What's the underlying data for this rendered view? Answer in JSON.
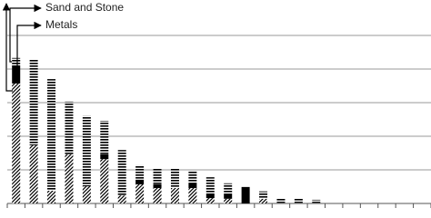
{
  "chart_data": {
    "type": "bar",
    "categories": [
      null,
      null,
      null,
      null,
      null,
      null,
      null,
      null,
      null,
      null,
      null,
      null,
      null,
      null,
      null,
      null,
      null,
      null,
      null,
      null,
      null,
      null,
      null,
      null
    ],
    "series": [
      {
        "color": "#000000",
        "pattern": "diagonal",
        "values": [
          3.57,
          1.73,
          0.38,
          1.46,
          0.51,
          1.32,
          0.24,
          0.57,
          0.46,
          0.46,
          0.46,
          0.16,
          0.14,
          0,
          0.14,
          0,
          0,
          0,
          0,
          0,
          0,
          0,
          0,
          0
        ]
      },
      {
        "name": "Metals",
        "color": "#000000",
        "pattern": "solid",
        "values": [
          0.54,
          0,
          0,
          0,
          0,
          0.14,
          0,
          0.14,
          0.11,
          0,
          0.14,
          0.11,
          0.14,
          0.49,
          0,
          0,
          0,
          0,
          0,
          0,
          0,
          0,
          0,
          0
        ]
      },
      {
        "name": "Sand and Stone",
        "color": "#000000",
        "pattern": "horizontal",
        "values": [
          0.22,
          2.54,
          3.32,
          1.57,
          2.1,
          1.0,
          1.35,
          0.43,
          0.46,
          0.57,
          0.38,
          0.51,
          0.32,
          0,
          0.22,
          0.14,
          0.14,
          0.11,
          0,
          0,
          0,
          0,
          0,
          0
        ]
      }
    ],
    "ylim": [
      0,
      6
    ],
    "yticks": [
      1,
      2,
      3,
      4,
      5
    ],
    "grid": true
  }
}
